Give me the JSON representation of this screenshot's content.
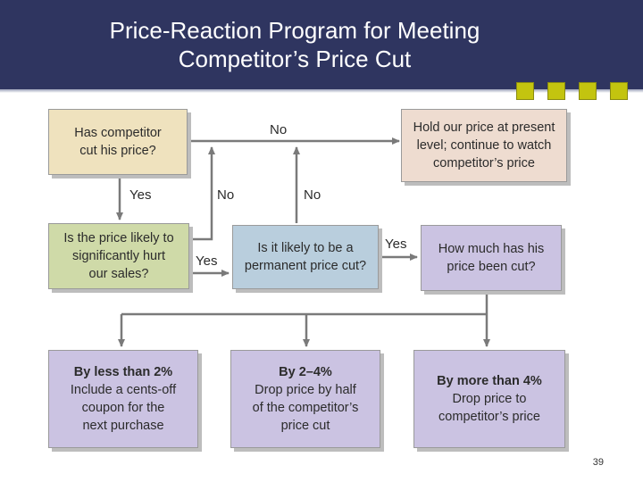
{
  "title": {
    "line1": "Price-Reaction Program for Meeting",
    "line2": "Competitor’s Price Cut"
  },
  "boxes": {
    "cut_q": [
      "Has competitor",
      "cut his price?"
    ],
    "hold": [
      "Hold our price at present",
      "level; continue to watch",
      "competitor’s price"
    ],
    "hurt_q": [
      "Is the price likely to",
      "significantly hurt",
      "our sales?"
    ],
    "permanent_q": [
      "Is it likely to be a",
      "permanent price cut?"
    ],
    "how_much_q": [
      "How much has his",
      "price been cut?"
    ],
    "less2": {
      "heading": "By less than 2%",
      "lines": [
        "Include a cents-off",
        "coupon for the",
        "next purchase"
      ]
    },
    "two_four": {
      "heading": "By 2–4%",
      "lines": [
        "Drop price by half",
        "of the competitor’s",
        "price cut"
      ]
    },
    "more4": {
      "heading": "By more than 4%",
      "lines": [
        "Drop price to",
        "competitor’s price"
      ]
    }
  },
  "labels": {
    "no_top": "No",
    "yes_down": "Yes",
    "no_mid1": "No",
    "no_mid2": "No",
    "yes_right": "Yes",
    "yes_hurt": "Yes"
  },
  "page_number": "39",
  "colors": {
    "header": "#2f3560",
    "accent_squares": "#c3c40f",
    "tan": "#efe2be",
    "peach": "#eedcd0",
    "green": "#cfdaa8",
    "blue": "#b9cedd",
    "lavender": "#cbc3e2",
    "arrow": "#7a7a7a"
  }
}
